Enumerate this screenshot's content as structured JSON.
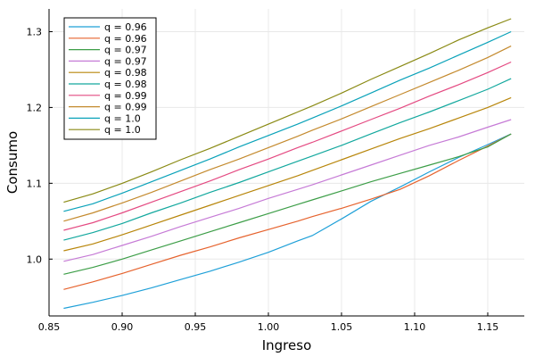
{
  "chart_data": {
    "type": "line",
    "title": "",
    "xlabel": "Ingreso",
    "ylabel": "Consumo",
    "xlim": [
      0.85,
      1.175
    ],
    "ylim": [
      0.925,
      1.33
    ],
    "xticks": [
      0.85,
      0.9,
      0.95,
      1.0,
      1.05,
      1.1,
      1.15
    ],
    "xtick_labels": [
      "0.85",
      "0.90",
      "0.95",
      "1.00",
      "1.05",
      "1.10",
      "1.15"
    ],
    "yticks": [
      1.0,
      1.1,
      1.2,
      1.3
    ],
    "ytick_labels": [
      "1.0",
      "1.1",
      "1.2",
      "1.3"
    ],
    "grid": true,
    "legend_position": "top-left",
    "x": [
      0.86,
      0.88,
      0.9,
      0.92,
      0.94,
      0.96,
      0.98,
      1.0,
      1.02,
      1.03,
      1.05,
      1.07,
      1.09,
      1.11,
      1.13,
      1.15,
      1.166
    ],
    "series": [
      {
        "name": "q = 0.96",
        "color": "#1fa0d8",
        "values": [
          0.935,
          0.943,
          0.952,
          0.962,
          0.973,
          0.984,
          0.996,
          1.009,
          1.024,
          1.031,
          1.053,
          1.076,
          1.095,
          1.115,
          1.134,
          1.151,
          1.165
        ]
      },
      {
        "name": "q = 0.96",
        "color": "#e6632e",
        "values": [
          0.96,
          0.97,
          0.981,
          0.993,
          1.005,
          1.016,
          1.028,
          1.039,
          1.05,
          1.056,
          1.067,
          1.079,
          1.092,
          1.11,
          1.13,
          1.149,
          1.165
        ]
      },
      {
        "name": "q = 0.97",
        "color": "#3d9e48",
        "values": [
          0.98,
          0.989,
          1.0,
          1.012,
          1.024,
          1.036,
          1.048,
          1.06,
          1.072,
          1.078,
          1.09,
          1.102,
          1.113,
          1.124,
          1.135,
          1.148,
          1.165
        ]
      },
      {
        "name": "q = 0.97",
        "color": "#c67bd6",
        "values": [
          0.997,
          1.006,
          1.018,
          1.03,
          1.043,
          1.055,
          1.067,
          1.08,
          1.092,
          1.098,
          1.111,
          1.124,
          1.137,
          1.15,
          1.161,
          1.174,
          1.184
        ]
      },
      {
        "name": "q = 0.98",
        "color": "#b8860b",
        "values": [
          1.011,
          1.02,
          1.032,
          1.045,
          1.058,
          1.071,
          1.084,
          1.097,
          1.11,
          1.117,
          1.131,
          1.145,
          1.159,
          1.172,
          1.186,
          1.2,
          1.213
        ]
      },
      {
        "name": "q = 0.98",
        "color": "#13a89e",
        "values": [
          1.025,
          1.035,
          1.047,
          1.061,
          1.074,
          1.088,
          1.101,
          1.115,
          1.129,
          1.136,
          1.15,
          1.165,
          1.18,
          1.194,
          1.209,
          1.224,
          1.238
        ]
      },
      {
        "name": "q = 0.99",
        "color": "#e44a82",
        "values": [
          1.038,
          1.048,
          1.061,
          1.075,
          1.089,
          1.103,
          1.118,
          1.132,
          1.147,
          1.154,
          1.169,
          1.184,
          1.199,
          1.215,
          1.23,
          1.246,
          1.26
        ]
      },
      {
        "name": "q = 0.99",
        "color": "#c48a2e",
        "values": [
          1.05,
          1.061,
          1.074,
          1.088,
          1.103,
          1.118,
          1.132,
          1.147,
          1.162,
          1.17,
          1.185,
          1.201,
          1.217,
          1.233,
          1.249,
          1.266,
          1.281
        ]
      },
      {
        "name": "q = 1.0",
        "color": "#0aa2b9",
        "values": [
          1.063,
          1.073,
          1.087,
          1.102,
          1.117,
          1.132,
          1.148,
          1.163,
          1.178,
          1.186,
          1.202,
          1.219,
          1.236,
          1.252,
          1.269,
          1.286,
          1.3
        ]
      },
      {
        "name": "q = 1.0",
        "color": "#8a8a14",
        "values": [
          1.075,
          1.086,
          1.1,
          1.115,
          1.131,
          1.146,
          1.162,
          1.178,
          1.194,
          1.202,
          1.219,
          1.237,
          1.254,
          1.271,
          1.289,
          1.305,
          1.317
        ]
      }
    ]
  }
}
